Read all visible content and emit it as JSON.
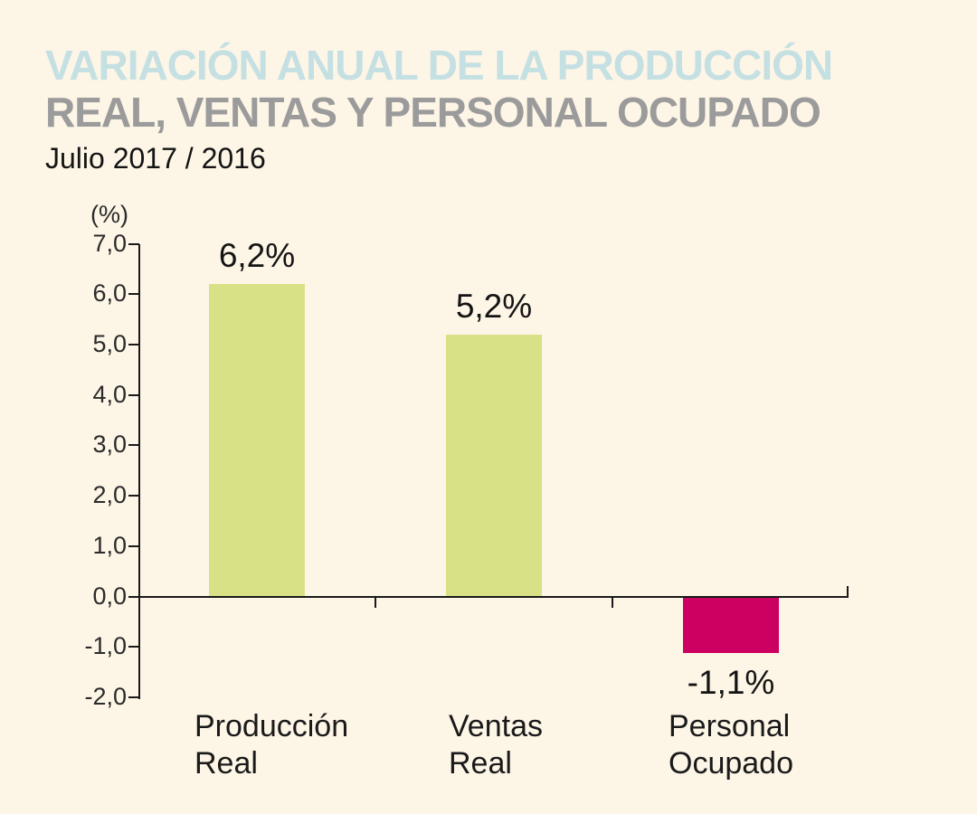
{
  "header": {
    "title_line1": "VARIACIÓN ANUAL DE LA PRODUCCIÓN",
    "title_line2": "REAL, VENTAS Y PERSONAL OCUPADO",
    "subtitle": "Julio 2017 / 2016"
  },
  "colors": {
    "background": "#FDF5E6",
    "title_line1": "#C5E0E3",
    "title_line2": "#9B9B9B",
    "positive_bar": "#D9E186",
    "negative_bar": "#CC0060",
    "axis": "#1A1A1A"
  },
  "chart_data": {
    "type": "bar",
    "title": "VARIACIÓN ANUAL DE LA PRODUCCIÓN REAL, VENTAS Y PERSONAL OCUPADO",
    "subtitle": "Julio 2017 / 2016",
    "unit_label": "(%)",
    "categories": [
      "Producción Real",
      "Ventas Real",
      "Personal Ocupado"
    ],
    "category_lines": [
      [
        "Producción",
        "Real"
      ],
      [
        "Ventas",
        "Real"
      ],
      [
        "Personal",
        "Ocupado"
      ]
    ],
    "values": [
      6.2,
      5.2,
      -1.1
    ],
    "value_labels": [
      "6,2%",
      "5,2%",
      "-1,1%"
    ],
    "bar_colors": [
      "#D9E186",
      "#D9E186",
      "#CC0060"
    ],
    "ylabel": "(%)",
    "xlabel": "",
    "ylim": [
      -2.0,
      7.0
    ],
    "ytick_values": [
      7.0,
      6.0,
      5.0,
      4.0,
      3.0,
      2.0,
      1.0,
      0.0,
      -1.0,
      -2.0
    ],
    "ytick_labels": [
      "7,0",
      "6,0",
      "5,0",
      "4,0",
      "3,0",
      "2,0",
      "1,0",
      "0,0",
      "-1,0",
      "-2,0"
    ],
    "grid": false,
    "legend": false
  }
}
